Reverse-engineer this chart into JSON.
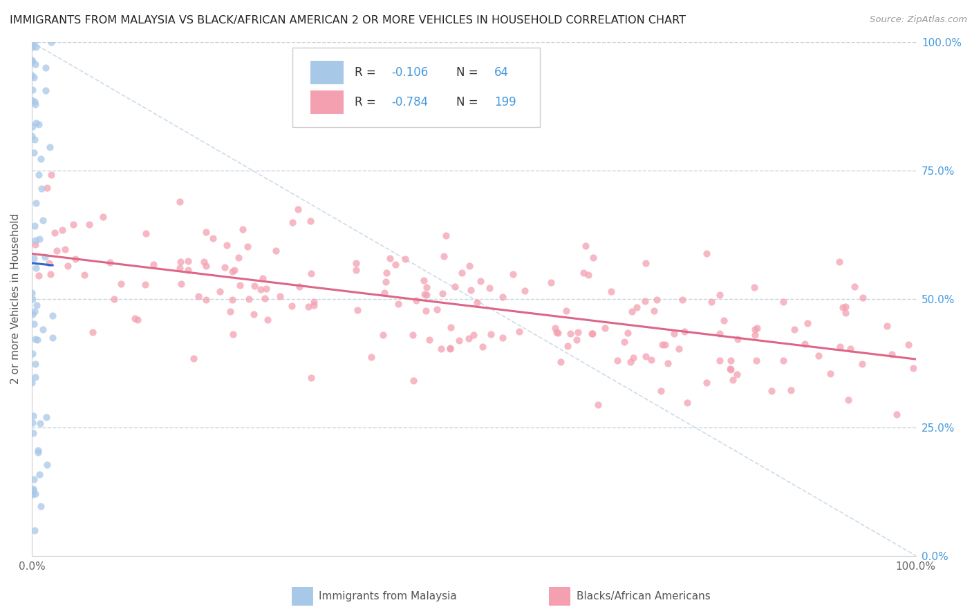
{
  "title": "IMMIGRANTS FROM MALAYSIA VS BLACK/AFRICAN AMERICAN 2 OR MORE VEHICLES IN HOUSEHOLD CORRELATION CHART",
  "source": "Source: ZipAtlas.com",
  "ylabel": "2 or more Vehicles in Household",
  "legend_label1": "Immigrants from Malaysia",
  "legend_label2": "Blacks/African Americans",
  "r1": "-0.106",
  "n1": "64",
  "r2": "-0.784",
  "n2": "199",
  "color_blue": "#a8c8e8",
  "color_pink": "#f4a0b0",
  "color_blue_text": "#4499dd",
  "trend_blue": "#3366cc",
  "trend_pink": "#dd6688",
  "trend_gray_color": "#c8d8e8",
  "background": "#ffffff",
  "grid_color": "#c8d4e0"
}
